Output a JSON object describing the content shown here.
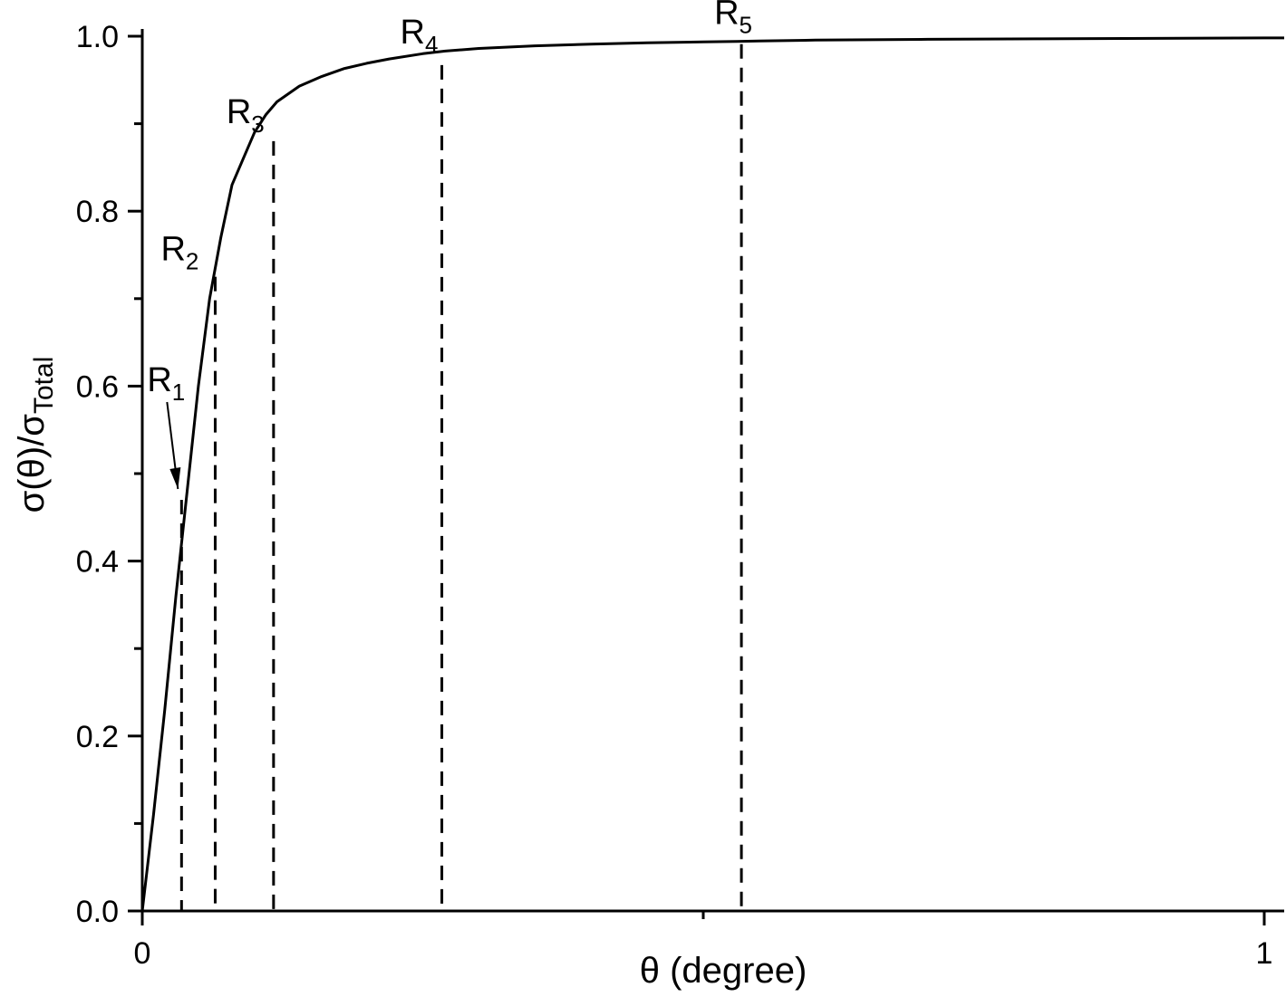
{
  "chart_data": {
    "type": "line",
    "title": "",
    "xlabel": "θ (degree)",
    "ylabel": {
      "main": "σ(θ)/σ",
      "subscript": "Total"
    },
    "xlim": [
      0,
      1.01
    ],
    "ylim": [
      0,
      1.0
    ],
    "x_ticks": [
      {
        "value": 0,
        "label": "0"
      },
      {
        "value": 1,
        "label": "1"
      }
    ],
    "x_minor_ticks": [
      0.5
    ],
    "y_ticks": [
      {
        "value": 0.0,
        "label": "0.0"
      },
      {
        "value": 0.2,
        "label": "0.2"
      },
      {
        "value": 0.4,
        "label": "0.4"
      },
      {
        "value": 0.6,
        "label": "0.6"
      },
      {
        "value": 0.8,
        "label": "0.8"
      },
      {
        "value": 1.0,
        "label": "1.0"
      }
    ],
    "y_minor_ticks": [
      0.1,
      0.3,
      0.5,
      0.7,
      0.9
    ],
    "grid": false,
    "series": [
      {
        "x": [
          0,
          0.01,
          0.02,
          0.03,
          0.04,
          0.05,
          0.06,
          0.07,
          0.08,
          0.09,
          0.1,
          0.11,
          0.12,
          0.14,
          0.16,
          0.18,
          0.2,
          0.22,
          0.25,
          0.27,
          0.3,
          0.35,
          0.4,
          0.45,
          0.5,
          0.53,
          0.55,
          0.6,
          0.7,
          0.8,
          0.9,
          1.0,
          1.02
        ],
        "values": [
          0,
          0.11,
          0.23,
          0.36,
          0.48,
          0.6,
          0.7,
          0.77,
          0.83,
          0.86,
          0.89,
          0.91,
          0.925,
          0.943,
          0.954,
          0.963,
          0.969,
          0.974,
          0.98,
          0.983,
          0.986,
          0.989,
          0.991,
          0.9925,
          0.9935,
          0.994,
          0.9945,
          0.9955,
          0.9965,
          0.997,
          0.9975,
          0.998,
          0.998
        ]
      }
    ],
    "markers": [
      {
        "label": "R",
        "subscript": "1",
        "x": 0.035,
        "y": 0.47,
        "arrow": true
      },
      {
        "label": "R",
        "subscript": "2",
        "x": 0.065,
        "y": 0.725
      },
      {
        "label": "R",
        "subscript": "3",
        "x": 0.117,
        "y": 0.88
      },
      {
        "label": "R",
        "subscript": "4",
        "x": 0.267,
        "y": 0.967
      },
      {
        "label": "R",
        "subscript": "5",
        "x": 0.534,
        "y": 0.991
      }
    ]
  }
}
